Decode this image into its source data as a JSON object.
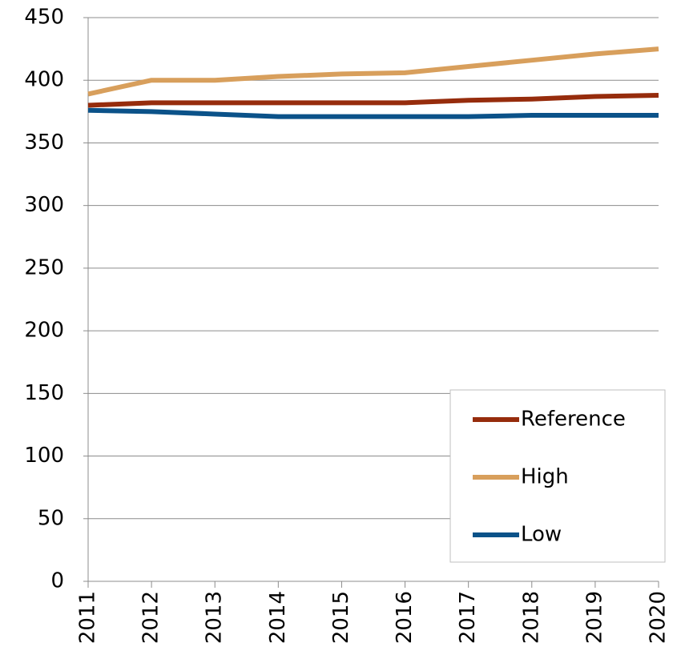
{
  "chart_data": {
    "type": "line",
    "x": [
      2011,
      2012,
      2013,
      2014,
      2015,
      2016,
      2017,
      2018,
      2019,
      2020
    ],
    "series": [
      {
        "name": "Reference",
        "color": "#962c0c",
        "values": [
          380,
          382,
          382,
          382,
          382,
          382,
          384,
          385,
          387,
          388
        ]
      },
      {
        "name": "High",
        "color": "#d89f5c",
        "values": [
          389,
          400,
          400,
          403,
          405,
          406,
          411,
          416,
          421,
          425
        ]
      },
      {
        "name": "Low",
        "color": "#0b5289",
        "values": [
          376,
          375,
          373,
          371,
          371,
          371,
          371,
          372,
          372,
          372
        ]
      }
    ],
    "xlim": [
      2011,
      2020
    ],
    "xticks": [
      2011,
      2012,
      2013,
      2014,
      2015,
      2016,
      2017,
      2018,
      2019,
      2020
    ],
    "ylim": [
      0,
      450
    ],
    "yticks": [
      0,
      50,
      100,
      150,
      200,
      250,
      300,
      350,
      400,
      450
    ],
    "grid": true,
    "legend": "lower right"
  }
}
